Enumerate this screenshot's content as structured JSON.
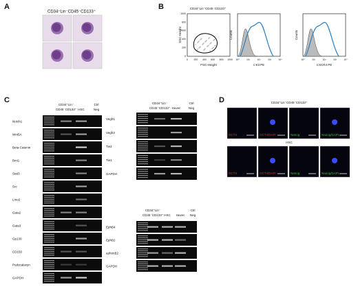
{
  "panels": {
    "a": {
      "label": "A",
      "title": "CD34⁺Lin⁻CD45⁻CD133⁺"
    },
    "b": {
      "label": "B",
      "title": "CD34⁺Lin⁻CD45⁻CD133⁺",
      "scatter": {
        "y_label": "SSC-Height",
        "x_label": "FSC-Height",
        "ticks": [
          "0",
          "200",
          "400",
          "600",
          "800",
          "1000"
        ]
      },
      "hist1": {
        "y_label": "Counts",
        "x_label": "c-Kit PE",
        "ticks": [
          "10⁰",
          "10¹",
          "10²",
          "10³",
          "10⁴"
        ]
      },
      "hist2": {
        "y_label": "Counts",
        "x_label": "CXCR4 PE",
        "ticks": [
          "10⁰",
          "10¹",
          "10²",
          "10³",
          "10⁴"
        ]
      }
    },
    "c": {
      "label": "C",
      "gel1": {
        "header": [
          [
            "CD34⁺Lin⁻",
            "CD45⁻CD133⁺"
          ],
          [
            "HSC"
          ],
          [
            "Ctrl",
            "Neg"
          ]
        ],
        "genes": [
          "Notch1",
          "Wnt5A",
          "Beta-Catenin",
          "Bmi1",
          "Stat3",
          "Src",
          "Lmo2",
          "Gata2",
          "Gata3",
          "Gp130",
          "CD150",
          "Podocalaxyn",
          "GAPDH"
        ]
      },
      "gel2": {
        "header": [
          [
            "CD34⁺Lin⁻",
            "CD45⁻CD133⁺"
          ],
          [
            "Huvec"
          ],
          [
            "Ctrl",
            "Neg"
          ]
        ],
        "genes": [
          "Vegfr1",
          "Vegfr2",
          "Tie2",
          "Tie1",
          "GAPDH"
        ]
      },
      "gel3": {
        "header": [
          [
            "CD34⁺Lin⁻",
            "CD45⁻CD133⁺"
          ],
          [
            "HSC"
          ],
          [
            "Huvec"
          ],
          [
            "Ctrl",
            "Neg"
          ]
        ],
        "genes": [
          "EphB4",
          "EphB2",
          "ephrinB2",
          "GAPDH"
        ]
      }
    },
    "d": {
      "label": "D",
      "title": "CD34⁺Lin⁻CD45⁻CD133⁺",
      "middle": "HSC",
      "row1": [
        "OCT4",
        "OCT4/DAPI",
        "Nanog",
        "Nanog/DAPI"
      ],
      "row2": [
        "OCT4",
        "OCT4/DAPI",
        "Nanog",
        "Nanog/DAPI"
      ]
    }
  }
}
